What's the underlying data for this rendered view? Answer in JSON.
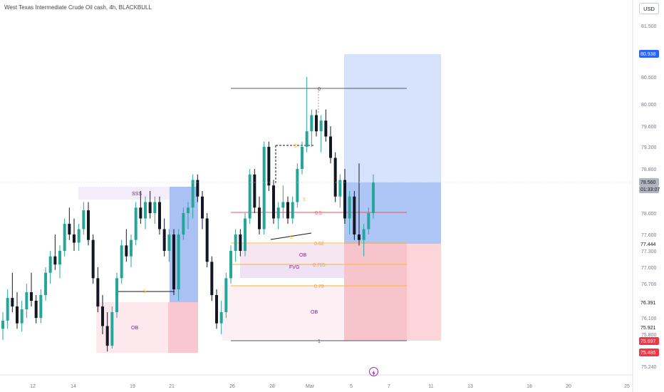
{
  "header": {
    "title": "West Texas Intermediate Crude Oil cash, 4h, BLACKBULL",
    "currency_button": "USD"
  },
  "colors": {
    "bull": "#26a69a",
    "bear": "#131722",
    "target_zone": "#bbd0f9",
    "stop_zone": "#f7c0c6",
    "ob_zone": "#fbe4ec",
    "fvg_zone": "#efe2f5",
    "fib_line": "#f7a600",
    "fib_mid": "#e55463",
    "label_purple": "#7b1fa2",
    "price_tag_blue": "#2962ff",
    "price_tag_red": "#f23645",
    "price_tag_gray": "#787b86",
    "last_price_tag": "#b2b5be"
  },
  "chart_data": {
    "type": "candlestick",
    "instrument": "West Texas Intermediate Crude Oil cash",
    "timeframe": "4h",
    "broker": "BLACKBULL",
    "y_axis_ticks": [
      "81.500",
      "80.500",
      "80.000",
      "79.600",
      "79.200",
      "78.800",
      "78.000",
      "77.600",
      "77.300",
      "77.000",
      "76.700",
      "76.100",
      "75.800",
      "75.240"
    ],
    "x_axis_ticks": [
      "12",
      "14",
      "19",
      "21",
      "26",
      "28",
      "Mar",
      "5",
      "7",
      "11",
      "13",
      "18",
      "20",
      "25"
    ],
    "ylim": [
      75.24,
      81.5
    ],
    "price_tags": [
      {
        "value": "80.938",
        "style": "blue"
      },
      {
        "value": "78.560",
        "style": "gray"
      },
      {
        "value": "01:33:07",
        "style": "gray"
      },
      {
        "value": "77.444",
        "style": "plain"
      },
      {
        "value": "76.391",
        "style": "plain"
      },
      {
        "value": "75.921",
        "style": "plain"
      },
      {
        "value": "75.697",
        "style": "red"
      },
      {
        "value": "75.485",
        "style": "red"
      }
    ],
    "annotations": [
      {
        "text": "SSS",
        "color": "purple"
      },
      {
        "text": "OB",
        "color": "purple"
      },
      {
        "text": "OB",
        "color": "purple"
      },
      {
        "text": "FVG",
        "color": "purple"
      },
      {
        "text": "OB",
        "color": "purple"
      },
      {
        "text": "0",
        "color": "gray"
      },
      {
        "text": "0.5",
        "color": "red"
      },
      {
        "text": "0.62",
        "color": "orange"
      },
      {
        "text": "0.705",
        "color": "orange"
      },
      {
        "text": "0.79",
        "color": "orange"
      },
      {
        "text": "1",
        "color": "gray"
      }
    ],
    "long_position": {
      "entry": 78.0,
      "target": 80.938,
      "stop": 75.697
    },
    "fib_levels": [
      {
        "level": "0",
        "price": 80.5
      },
      {
        "level": "0.5",
        "price": 77.85
      },
      {
        "level": "0.62",
        "price": 77.35
      },
      {
        "level": "0.705",
        "price": 77.05
      },
      {
        "level": "0.79",
        "price": 76.7
      },
      {
        "level": "1",
        "price": 75.6
      }
    ],
    "candles": [
      [
        75.9,
        76.2,
        75.7,
        76.05
      ],
      [
        76.05,
        76.6,
        75.9,
        76.45
      ],
      [
        76.45,
        76.9,
        76.2,
        76.3
      ],
      [
        76.3,
        76.55,
        75.9,
        76.0
      ],
      [
        76.0,
        76.4,
        75.85,
        76.25
      ],
      [
        76.25,
        76.7,
        76.1,
        76.55
      ],
      [
        76.55,
        76.9,
        76.3,
        76.4
      ],
      [
        76.4,
        76.5,
        76.0,
        76.1
      ],
      [
        76.1,
        76.6,
        76.0,
        76.5
      ],
      [
        76.5,
        77.0,
        76.4,
        76.9
      ],
      [
        76.9,
        77.3,
        76.7,
        77.2
      ],
      [
        77.2,
        77.6,
        76.95,
        77.05
      ],
      [
        77.05,
        77.4,
        76.8,
        77.3
      ],
      [
        77.3,
        77.9,
        77.2,
        77.8
      ],
      [
        77.8,
        78.1,
        77.5,
        77.6
      ],
      [
        77.6,
        77.9,
        77.3,
        77.45
      ],
      [
        77.45,
        77.8,
        77.3,
        77.7
      ],
      [
        77.7,
        78.2,
        77.6,
        78.05
      ],
      [
        78.05,
        78.2,
        77.4,
        77.5
      ],
      [
        77.5,
        77.6,
        76.7,
        76.8
      ],
      [
        76.8,
        77.0,
        76.2,
        76.3
      ],
      [
        76.3,
        76.5,
        75.8,
        75.95
      ],
      [
        75.95,
        76.2,
        75.5,
        75.6
      ],
      [
        75.6,
        76.3,
        75.55,
        76.2
      ],
      [
        76.2,
        76.9,
        76.1,
        76.8
      ],
      [
        76.8,
        77.5,
        76.7,
        77.4
      ],
      [
        77.4,
        77.7,
        77.1,
        77.2
      ],
      [
        77.2,
        77.6,
        77.0,
        77.5
      ],
      [
        77.5,
        78.2,
        77.4,
        78.1
      ],
      [
        78.1,
        78.4,
        77.8,
        77.9
      ],
      [
        77.9,
        78.3,
        77.7,
        78.2
      ],
      [
        78.2,
        78.4,
        77.9,
        78.0
      ],
      [
        78.0,
        78.3,
        77.8,
        78.2
      ],
      [
        78.2,
        78.3,
        77.6,
        77.7
      ],
      [
        77.7,
        77.9,
        77.2,
        77.3
      ],
      [
        77.3,
        77.7,
        77.1,
        77.6
      ],
      [
        77.6,
        77.7,
        76.5,
        76.6
      ],
      [
        76.6,
        77.7,
        76.4,
        77.6
      ],
      [
        77.6,
        78.1,
        77.5,
        78.0
      ],
      [
        78.0,
        78.2,
        77.7,
        78.1
      ],
      [
        78.1,
        78.7,
        77.9,
        78.6
      ],
      [
        78.6,
        78.7,
        78.2,
        78.3
      ],
      [
        78.3,
        78.4,
        77.7,
        77.9
      ],
      [
        77.9,
        78.0,
        77.0,
        77.1
      ],
      [
        77.1,
        77.2,
        76.4,
        76.5
      ],
      [
        76.5,
        76.6,
        75.9,
        76.0
      ],
      [
        76.0,
        76.4,
        75.8,
        76.2
      ],
      [
        76.2,
        76.9,
        76.1,
        76.8
      ],
      [
        76.8,
        77.4,
        76.7,
        77.3
      ],
      [
        77.3,
        77.7,
        77.1,
        77.6
      ],
      [
        77.6,
        77.7,
        77.2,
        77.3
      ],
      [
        77.3,
        78.0,
        77.2,
        77.9
      ],
      [
        77.9,
        78.8,
        77.8,
        78.7
      ],
      [
        78.7,
        78.8,
        78.0,
        78.1
      ],
      [
        78.1,
        78.3,
        77.6,
        77.7
      ],
      [
        77.7,
        79.3,
        77.6,
        79.2
      ],
      [
        79.2,
        79.3,
        78.4,
        78.5
      ],
      [
        78.5,
        78.6,
        77.8,
        77.9
      ],
      [
        77.9,
        78.2,
        77.7,
        78.1
      ],
      [
        78.1,
        78.5,
        77.9,
        78.2
      ],
      [
        78.2,
        78.3,
        77.8,
        77.9
      ],
      [
        77.9,
        78.3,
        77.8,
        78.2
      ],
      [
        78.2,
        78.9,
        78.1,
        78.8
      ],
      [
        78.8,
        79.3,
        78.7,
        79.2
      ],
      [
        79.2,
        80.5,
        79.1,
        79.5
      ],
      [
        79.5,
        79.9,
        79.2,
        79.8
      ],
      [
        79.8,
        79.9,
        79.4,
        79.5
      ],
      [
        79.5,
        79.8,
        79.1,
        79.7
      ],
      [
        79.7,
        79.9,
        79.3,
        79.4
      ],
      [
        79.4,
        79.6,
        78.9,
        79.0
      ],
      [
        79.0,
        79.1,
        78.2,
        78.3
      ],
      [
        78.3,
        78.7,
        78.1,
        78.6
      ],
      [
        78.6,
        78.8,
        77.8,
        77.9
      ],
      [
        77.9,
        78.4,
        77.6,
        78.3
      ],
      [
        78.3,
        78.4,
        77.5,
        77.6
      ],
      [
        77.6,
        78.9,
        77.4,
        77.5
      ],
      [
        77.5,
        77.8,
        77.2,
        77.7
      ],
      [
        77.7,
        78.1,
        77.6,
        78.0
      ],
      [
        78.0,
        78.7,
        77.9,
        78.56
      ]
    ]
  }
}
